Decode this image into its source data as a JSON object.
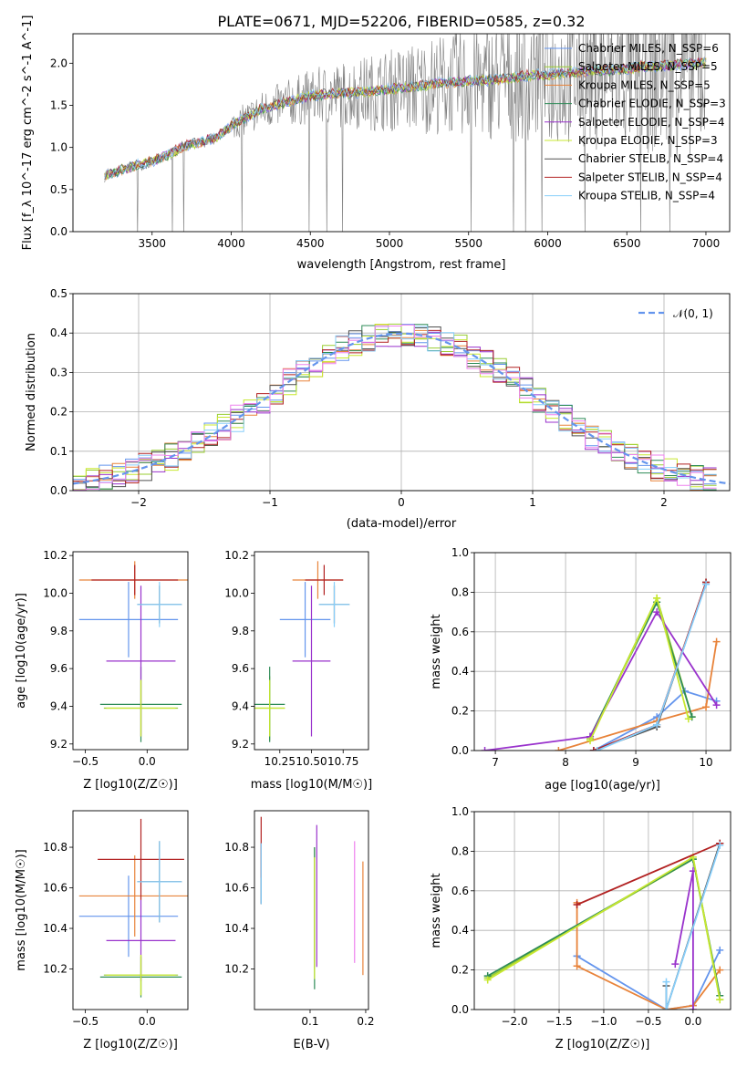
{
  "figure": {
    "title": "PLATE=0671, MJD=52206, FIBERID=0585, z=0.32"
  },
  "chart_data": [
    {
      "id": "spectrum",
      "type": "line",
      "xlabel": "wavelength [Angstrom, rest frame]",
      "ylabel": "Flux [f_λ 10^-17 erg cm^-2 s^-1 A^-1]",
      "xlim": [
        3000,
        7150
      ],
      "ylim": [
        0,
        2.35
      ],
      "xticks": [
        "3500",
        "4000",
        "4500",
        "5000",
        "5500",
        "6000",
        "6500",
        "7000"
      ],
      "yticks": [
        "0.0",
        "0.5",
        "1.0",
        "1.5",
        "2.0"
      ],
      "grid": false,
      "legend_position": "top-right",
      "series": [
        {
          "name": "Chabrier MILES, N_SSP=6",
          "color": "#6495ed"
        },
        {
          "name": "Salpeter MILES, N_SSP=5",
          "color": "#9acd32"
        },
        {
          "name": "Kroupa MILES, N_SSP=5",
          "color": "#e8833a"
        },
        {
          "name": "Chabrier ELODIE, N_SSP=3",
          "color": "#2e8b57"
        },
        {
          "name": "Salpeter ELODIE, N_SSP=4",
          "color": "#9932cc"
        },
        {
          "name": "Kroupa ELODIE, N_SSP=3",
          "color": "#c8e830"
        },
        {
          "name": "Chabrier STELIB, N_SSP=4",
          "color": "#505050"
        },
        {
          "name": "Salpeter STELIB, N_SSP=4",
          "color": "#b22222"
        },
        {
          "name": "Kroupa STELIB, N_SSP=4",
          "color": "#87cefa"
        }
      ],
      "model_points": [
        [
          3200,
          0.65
        ],
        [
          3300,
          0.72
        ],
        [
          3400,
          0.78
        ],
        [
          3500,
          0.82
        ],
        [
          3600,
          0.9
        ],
        [
          3700,
          1.0
        ],
        [
          3800,
          1.05
        ],
        [
          3900,
          1.1
        ],
        [
          4000,
          1.25
        ],
        [
          4100,
          1.35
        ],
        [
          4200,
          1.45
        ],
        [
          4300,
          1.5
        ],
        [
          4400,
          1.55
        ],
        [
          4500,
          1.6
        ],
        [
          4600,
          1.62
        ],
        [
          4700,
          1.63
        ],
        [
          4800,
          1.64
        ],
        [
          4900,
          1.66
        ],
        [
          5000,
          1.68
        ],
        [
          5100,
          1.7
        ],
        [
          5200,
          1.72
        ],
        [
          5300,
          1.75
        ],
        [
          5400,
          1.76
        ],
        [
          5500,
          1.78
        ],
        [
          5600,
          1.78
        ],
        [
          5700,
          1.8
        ],
        [
          5800,
          1.82
        ],
        [
          5900,
          1.85
        ],
        [
          6000,
          1.85
        ],
        [
          6100,
          1.87
        ],
        [
          6200,
          1.88
        ],
        [
          6300,
          1.9
        ],
        [
          6400,
          1.9
        ],
        [
          6500,
          1.92
        ],
        [
          6600,
          1.95
        ],
        [
          6700,
          1.95
        ],
        [
          6800,
          1.97
        ],
        [
          6900,
          1.98
        ],
        [
          7000,
          2.0
        ]
      ]
    },
    {
      "id": "residuals",
      "type": "line",
      "xlabel": "(data-model)/error",
      "ylabel": "Normed distribution",
      "xlim": [
        -2.5,
        2.5
      ],
      "ylim": [
        0,
        0.5
      ],
      "xticks": [
        "−2",
        "−1",
        "0",
        "1",
        "2"
      ],
      "yticks": [
        "0.0",
        "0.1",
        "0.2",
        "0.3",
        "0.4",
        "0.5"
      ],
      "grid": true,
      "legend": "𝒩(0, 1)",
      "legend_position": "top-right",
      "histogram_bins": {
        "start": -2.45,
        "width": 0.1,
        "count": 49
      }
    },
    {
      "id": "age-vs-Z",
      "type": "scatter",
      "xlabel": "Z [log10(Z/Z☉)]",
      "ylabel": "age [log10(age/yr)]",
      "xlim": [
        -0.6,
        0.33
      ],
      "ylim": [
        9.17,
        10.22
      ],
      "xticks": [
        "−0.5",
        "0.0"
      ],
      "yticks": [
        "9.2",
        "9.4",
        "9.6",
        "9.8",
        "10.0",
        "10.2"
      ],
      "points": [
        {
          "x": -0.15,
          "y": 9.86,
          "xerr": 0.4,
          "yerr": 0.2,
          "color": "#6495ed"
        },
        {
          "x": -0.05,
          "y": 9.39,
          "xerr": 0.3,
          "yerr": 0.15,
          "color": "#9acd32"
        },
        {
          "x": -0.1,
          "y": 10.07,
          "xerr": 0.45,
          "yerr": 0.1,
          "color": "#e8833a"
        },
        {
          "x": -0.05,
          "y": 9.41,
          "xerr": 0.33,
          "yerr": 0.2,
          "color": "#2e8b57"
        },
        {
          "x": -0.05,
          "y": 9.64,
          "xerr": 0.28,
          "yerr": 0.4,
          "color": "#9932cc"
        },
        {
          "x": -0.05,
          "y": 9.39,
          "xerr": 0.28,
          "yerr": 0.15,
          "color": "#c8e830"
        },
        {
          "x": 0.1,
          "y": 9.94,
          "xerr": 0.18,
          "yerr": 0.1,
          "color": "#505050"
        },
        {
          "x": -0.1,
          "y": 10.07,
          "xerr": 0.35,
          "yerr": 0.08,
          "color": "#b22222"
        },
        {
          "x": 0.1,
          "y": 9.94,
          "xerr": 0.18,
          "yerr": 0.12,
          "color": "#87cefa"
        }
      ]
    },
    {
      "id": "age-vs-mass",
      "type": "scatter",
      "xlabel": "mass [log10(M/M☉)]",
      "ylabel": "",
      "xlim": [
        10.05,
        10.95
      ],
      "ylim": [
        9.17,
        10.22
      ],
      "xticks": [
        "10.25",
        "10.50",
        "10.75"
      ],
      "yticks": [
        "9.2",
        "9.4",
        "9.6",
        "9.8",
        "10.0",
        "10.2"
      ],
      "points": [
        {
          "x": 10.45,
          "y": 9.86,
          "xerr": 0.2,
          "yerr": 0.2,
          "color": "#6495ed"
        },
        {
          "x": 10.17,
          "y": 9.39,
          "xerr": 0.12,
          "yerr": 0.17,
          "color": "#9acd32"
        },
        {
          "x": 10.55,
          "y": 10.07,
          "xerr": 0.2,
          "yerr": 0.1,
          "color": "#e8833a"
        },
        {
          "x": 10.17,
          "y": 9.41,
          "xerr": 0.12,
          "yerr": 0.2,
          "color": "#2e8b57"
        },
        {
          "x": 10.5,
          "y": 9.64,
          "xerr": 0.15,
          "yerr": 0.4,
          "color": "#9932cc"
        },
        {
          "x": 10.17,
          "y": 9.39,
          "xerr": 0.12,
          "yerr": 0.15,
          "color": "#c8e830"
        },
        {
          "x": 10.68,
          "y": 9.94,
          "xerr": 0.12,
          "yerr": 0.1,
          "color": "#505050"
        },
        {
          "x": 10.6,
          "y": 10.07,
          "xerr": 0.15,
          "yerr": 0.08,
          "color": "#b22222"
        },
        {
          "x": 10.68,
          "y": 9.94,
          "xerr": 0.12,
          "yerr": 0.12,
          "color": "#87cefa"
        }
      ]
    },
    {
      "id": "weight-vs-age",
      "type": "line",
      "xlabel": "age [log10(age/yr)]",
      "ylabel": "mass weight",
      "xlim": [
        6.7,
        10.35
      ],
      "ylim": [
        0,
        1.0
      ],
      "xticks": [
        "7",
        "8",
        "9",
        "10"
      ],
      "yticks": [
        "0.0",
        "0.2",
        "0.4",
        "0.6",
        "0.8",
        "1.0"
      ],
      "grid": true,
      "series": [
        {
          "color": "#6495ed",
          "points": [
            [
              8.4,
              0.0
            ],
            [
              9.3,
              0.17
            ],
            [
              9.7,
              0.3
            ],
            [
              10.15,
              0.25
            ]
          ]
        },
        {
          "color": "#9acd32",
          "points": [
            [
              8.35,
              0.06
            ],
            [
              9.3,
              0.77
            ],
            [
              9.8,
              0.17
            ]
          ]
        },
        {
          "color": "#e8833a",
          "points": [
            [
              7.9,
              0.0
            ],
            [
              9.3,
              0.15
            ],
            [
              10.0,
              0.22
            ],
            [
              10.15,
              0.55
            ]
          ]
        },
        {
          "color": "#2e8b57",
          "points": [
            [
              8.35,
              0.07
            ],
            [
              9.3,
              0.75
            ],
            [
              9.8,
              0.17
            ]
          ]
        },
        {
          "color": "#9932cc",
          "points": [
            [
              6.85,
              0.0
            ],
            [
              8.35,
              0.07
            ],
            [
              9.3,
              0.7
            ],
            [
              10.15,
              0.23
            ]
          ]
        },
        {
          "color": "#c8e830",
          "points": [
            [
              8.35,
              0.05
            ],
            [
              9.3,
              0.77
            ],
            [
              9.75,
              0.16
            ]
          ]
        },
        {
          "color": "#505050",
          "points": [
            [
              8.4,
              0.0
            ],
            [
              9.3,
              0.12
            ],
            [
              10.0,
              0.85
            ]
          ]
        },
        {
          "color": "#b22222",
          "points": [
            [
              8.4,
              0.0
            ],
            [
              9.3,
              0.13
            ],
            [
              10.0,
              0.85
            ]
          ]
        },
        {
          "color": "#87cefa",
          "points": [
            [
              8.45,
              0.0
            ],
            [
              9.3,
              0.13
            ],
            [
              10.0,
              0.84
            ]
          ]
        }
      ]
    },
    {
      "id": "mass-vs-Z",
      "type": "scatter",
      "xlabel": "Z [log10(Z/Z☉)]",
      "ylabel": "mass [log10(M/M☉)]",
      "xlim": [
        -0.6,
        0.33
      ],
      "ylim": [
        10.0,
        10.98
      ],
      "xticks": [
        "−0.5",
        "0.0"
      ],
      "yticks": [
        "10.2",
        "10.4",
        "10.6",
        "10.8"
      ],
      "points": [
        {
          "x": -0.15,
          "y": 10.46,
          "xerr": 0.4,
          "yerr": 0.2,
          "color": "#6495ed"
        },
        {
          "x": -0.05,
          "y": 10.17,
          "xerr": 0.3,
          "yerr": 0.1,
          "color": "#9acd32"
        },
        {
          "x": -0.1,
          "y": 10.56,
          "xerr": 0.45,
          "yerr": 0.2,
          "color": "#e8833a"
        },
        {
          "x": -0.05,
          "y": 10.16,
          "xerr": 0.33,
          "yerr": 0.1,
          "color": "#2e8b57"
        },
        {
          "x": -0.05,
          "y": 10.34,
          "xerr": 0.28,
          "yerr": 0.2,
          "color": "#9932cc"
        },
        {
          "x": -0.05,
          "y": 10.17,
          "xerr": 0.28,
          "yerr": 0.1,
          "color": "#c8e830"
        },
        {
          "x": 0.1,
          "y": 10.63,
          "xerr": 0.18,
          "yerr": 0.2,
          "color": "#505050"
        },
        {
          "x": -0.05,
          "y": 10.74,
          "xerr": 0.35,
          "yerr": 0.2,
          "color": "#b22222"
        },
        {
          "x": 0.1,
          "y": 10.63,
          "xerr": 0.18,
          "yerr": 0.2,
          "color": "#87cefa"
        }
      ]
    },
    {
      "id": "mass-vs-EBV",
      "type": "scatter",
      "xlabel": "E(B-V)",
      "ylabel": "",
      "xlim": [
        0.0,
        0.205
      ],
      "ylim": [
        10.0,
        10.98
      ],
      "xticks": [
        "0.1",
        "0.2"
      ],
      "yticks": [
        "10.2",
        "10.4",
        "10.6",
        "10.8"
      ],
      "points": [
        {
          "x": 0.012,
          "y": 10.67,
          "xerr": 0,
          "yerr": 0.15,
          "color": "#6495ed"
        },
        {
          "x": 0.108,
          "y": 10.5,
          "xerr": 0,
          "yerr": 0.3,
          "color": "#9acd32"
        },
        {
          "x": 0.195,
          "y": 10.45,
          "xerr": 0,
          "yerr": 0.28,
          "color": "#e8833a"
        },
        {
          "x": 0.108,
          "y": 10.45,
          "xerr": 0,
          "yerr": 0.35,
          "color": "#2e8b57"
        },
        {
          "x": 0.112,
          "y": 10.56,
          "xerr": 0,
          "yerr": 0.35,
          "color": "#9932cc"
        },
        {
          "x": 0.108,
          "y": 10.45,
          "xerr": 0,
          "yerr": 0.3,
          "color": "#c8e830"
        },
        {
          "x": 0.012,
          "y": 10.67,
          "xerr": 0,
          "yerr": 0.15,
          "color": "#505050"
        },
        {
          "x": 0.012,
          "y": 10.8,
          "xerr": 0,
          "yerr": 0.15,
          "color": "#b22222"
        },
        {
          "x": 0.012,
          "y": 10.67,
          "xerr": 0,
          "yerr": 0.15,
          "color": "#87cefa"
        },
        {
          "x": 0.18,
          "y": 10.53,
          "xerr": 0,
          "yerr": 0.3,
          "color": "#ee82ee"
        }
      ]
    },
    {
      "id": "weight-vs-Z",
      "type": "line",
      "xlabel": "Z [log10(Z/Z☉)]",
      "ylabel": "mass weight",
      "xlim": [
        -2.45,
        0.42
      ],
      "ylim": [
        0,
        1.0
      ],
      "xticks": [
        "−2.0",
        "−1.5",
        "−1.0",
        "−0.5",
        "0.0"
      ],
      "yticks": [
        "0.0",
        "0.2",
        "0.4",
        "0.6",
        "0.8",
        "1.0"
      ],
      "grid": true,
      "series": [
        {
          "color": "#6495ed",
          "points": [
            [
              -1.3,
              0.27
            ],
            [
              -1.3,
              0.27
            ],
            [
              -0.3,
              0.0
            ],
            [
              0.0,
              0.02
            ],
            [
              0.3,
              0.3
            ]
          ]
        },
        {
          "color": "#9acd32",
          "points": [
            [
              -2.3,
              0.16
            ],
            [
              0.0,
              0.76
            ],
            [
              0.3,
              0.05
            ]
          ]
        },
        {
          "color": "#e8833a",
          "points": [
            [
              -1.3,
              0.54
            ],
            [
              -1.3,
              0.22
            ],
            [
              -0.3,
              0.0
            ],
            [
              0.0,
              0.02
            ],
            [
              0.3,
              0.2
            ]
          ]
        },
        {
          "color": "#2e8b57",
          "points": [
            [
              -2.3,
              0.17
            ],
            [
              0.0,
              0.76
            ],
            [
              0.3,
              0.07
            ]
          ]
        },
        {
          "color": "#9932cc",
          "points": [
            [
              -0.2,
              0.23
            ],
            [
              0.0,
              0.7
            ],
            [
              0.0,
              0.0
            ]
          ]
        },
        {
          "color": "#c8e830",
          "points": [
            [
              -2.3,
              0.15
            ],
            [
              0.0,
              0.77
            ],
            [
              0.3,
              0.05
            ]
          ]
        },
        {
          "color": "#505050",
          "points": [
            [
              -0.3,
              0.12
            ],
            [
              -0.3,
              0.0
            ],
            [
              0.3,
              0.84
            ]
          ]
        },
        {
          "color": "#b22222",
          "points": [
            [
              -1.3,
              0.53
            ],
            [
              0.3,
              0.84
            ]
          ]
        },
        {
          "color": "#87cefa",
          "points": [
            [
              -0.3,
              0.14
            ],
            [
              -0.3,
              0.0
            ],
            [
              0.3,
              0.83
            ]
          ]
        }
      ]
    }
  ]
}
